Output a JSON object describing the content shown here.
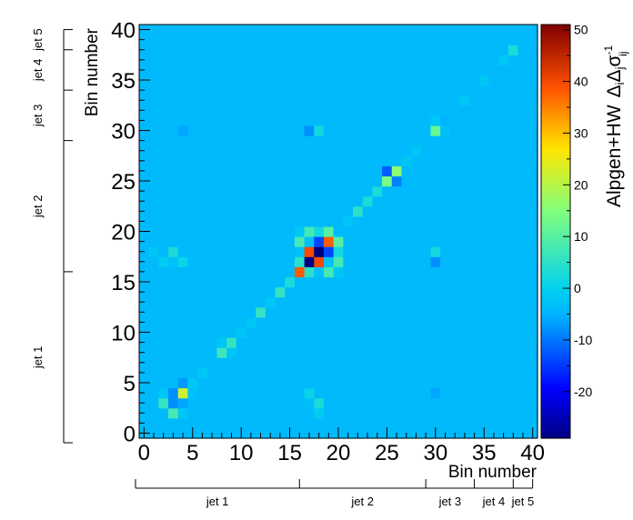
{
  "chart_data": {
    "type": "heatmap",
    "xlabel": "Bin number",
    "ylabel": "Bin number",
    "colorbar_label": "Alpgen+HW  Δ_i Δ_j σ_ij^-1",
    "colorbar_label_main": "Alpgen+HW",
    "colorbar_label_delta": "Δ",
    "colorbar_label_i": "i",
    "colorbar_label_j": "j",
    "colorbar_label_sigma": "σ",
    "colorbar_label_sub": "ij",
    "colorbar_label_sup": "-1",
    "xlim": [
      0,
      41
    ],
    "ylim": [
      0,
      41
    ],
    "zlim": [
      -29,
      51
    ],
    "x_ticks": [
      "0",
      "5",
      "10",
      "15",
      "20",
      "25",
      "30",
      "35",
      "40"
    ],
    "y_ticks": [
      "0",
      "5",
      "10",
      "15",
      "20",
      "25",
      "30",
      "35",
      "40"
    ],
    "colorbar_ticks": [
      "-20",
      "-10",
      "0",
      "10",
      "20",
      "30",
      "40",
      "50"
    ],
    "background_value": -4,
    "cells": [
      {
        "x": 17,
        "y": 17,
        "v": -29
      },
      {
        "x": 18,
        "y": 18,
        "v": -29
      },
      {
        "x": 17,
        "y": 18,
        "v": 40
      },
      {
        "x": 18,
        "y": 17,
        "v": 40
      },
      {
        "x": 16,
        "y": 16,
        "v": 38
      },
      {
        "x": 19,
        "y": 19,
        "v": 38
      },
      {
        "x": 17,
        "y": 16,
        "v": 5
      },
      {
        "x": 16,
        "y": 17,
        "v": 5
      },
      {
        "x": 18,
        "y": 19,
        "v": -14
      },
      {
        "x": 19,
        "y": 18,
        "v": -14
      },
      {
        "x": 17,
        "y": 19,
        "v": -3
      },
      {
        "x": 19,
        "y": 17,
        "v": -3
      },
      {
        "x": 18,
        "y": 16,
        "v": -3
      },
      {
        "x": 16,
        "y": 18,
        "v": -3
      },
      {
        "x": 17,
        "y": 20,
        "v": 8
      },
      {
        "x": 20,
        "y": 17,
        "v": 8
      },
      {
        "x": 16,
        "y": 19,
        "v": 8
      },
      {
        "x": 19,
        "y": 16,
        "v": 8
      },
      {
        "x": 18,
        "y": 20,
        "v": 2
      },
      {
        "x": 20,
        "y": 18,
        "v": 2
      },
      {
        "x": 19,
        "y": 20,
        "v": 10
      },
      {
        "x": 20,
        "y": 19,
        "v": 10
      },
      {
        "x": 16,
        "y": 20,
        "v": -2
      },
      {
        "x": 20,
        "y": 16,
        "v": -2
      },
      {
        "x": 4,
        "y": 4,
        "v": 22
      },
      {
        "x": 3,
        "y": 3,
        "v": -8
      },
      {
        "x": 3,
        "y": 4,
        "v": -8
      },
      {
        "x": 4,
        "y": 3,
        "v": -6
      },
      {
        "x": 3,
        "y": 2,
        "v": 8
      },
      {
        "x": 2,
        "y": 3,
        "v": 6
      },
      {
        "x": 4,
        "y": 5,
        "v": -7
      },
      {
        "x": 5,
        "y": 4,
        "v": -3
      },
      {
        "x": 4,
        "y": 2,
        "v": -2
      },
      {
        "x": 2,
        "y": 4,
        "v": -2
      },
      {
        "x": 26,
        "y": 26,
        "v": 16
      },
      {
        "x": 25,
        "y": 25,
        "v": 14
      },
      {
        "x": 25,
        "y": 26,
        "v": -12
      },
      {
        "x": 26,
        "y": 25,
        "v": -9
      },
      {
        "x": 24,
        "y": 24,
        "v": 3
      },
      {
        "x": 27,
        "y": 27,
        "v": -2
      },
      {
        "x": 30,
        "y": 30,
        "v": 12
      },
      {
        "x": 31,
        "y": 31,
        "v": -5
      },
      {
        "x": 30,
        "y": 31,
        "v": -2
      },
      {
        "x": 31,
        "y": 30,
        "v": -3
      },
      {
        "x": 8,
        "y": 8,
        "v": 7
      },
      {
        "x": 9,
        "y": 9,
        "v": 6
      },
      {
        "x": 8,
        "y": 9,
        "v": -2
      },
      {
        "x": 9,
        "y": 8,
        "v": -2
      },
      {
        "x": 12,
        "y": 12,
        "v": 6
      },
      {
        "x": 14,
        "y": 14,
        "v": 6
      },
      {
        "x": 15,
        "y": 15,
        "v": 3
      },
      {
        "x": 13,
        "y": 13,
        "v": -2
      },
      {
        "x": 22,
        "y": 22,
        "v": 5
      },
      {
        "x": 23,
        "y": 23,
        "v": 3
      },
      {
        "x": 21,
        "y": 21,
        "v": -2
      },
      {
        "x": 17,
        "y": 30,
        "v": -8
      },
      {
        "x": 30,
        "y": 17,
        "v": -8
      },
      {
        "x": 17,
        "y": 3,
        "v": -3
      },
      {
        "x": 3,
        "y": 17,
        "v": -3
      },
      {
        "x": 18,
        "y": 3,
        "v": 3
      },
      {
        "x": 3,
        "y": 18,
        "v": 3
      },
      {
        "x": 18,
        "y": 30,
        "v": 2
      },
      {
        "x": 30,
        "y": 18,
        "v": 2
      },
      {
        "x": 4,
        "y": 30,
        "v": -6
      },
      {
        "x": 30,
        "y": 4,
        "v": -6
      },
      {
        "x": 4,
        "y": 17,
        "v": 1
      },
      {
        "x": 17,
        "y": 4,
        "v": 1
      },
      {
        "x": 1,
        "y": 18,
        "v": -2
      },
      {
        "x": 2,
        "y": 17,
        "v": -1
      },
      {
        "x": 18,
        "y": 2,
        "v": -1
      },
      {
        "x": 38,
        "y": 38,
        "v": 3
      },
      {
        "x": 37,
        "y": 37,
        "v": -2
      },
      {
        "x": 35,
        "y": 35,
        "v": -2
      },
      {
        "x": 33,
        "y": 33,
        "v": -2
      },
      {
        "x": 28,
        "y": 28,
        "v": -2
      },
      {
        "x": 6,
        "y": 6,
        "v": -2
      },
      {
        "x": 10,
        "y": 10,
        "v": -2
      },
      {
        "x": 5,
        "y": 5,
        "v": -2
      },
      {
        "x": 11,
        "y": 11,
        "v": -2
      }
    ],
    "regions": [
      {
        "label": "jet 1",
        "start": 0,
        "end": 16.5
      },
      {
        "label": "jet 2",
        "start": 16.5,
        "end": 29.5
      },
      {
        "label": "jet 3",
        "start": 29.5,
        "end": 34.5
      },
      {
        "label": "jet 4",
        "start": 34.5,
        "end": 38.5
      },
      {
        "label": "jet 5",
        "start": 38.5,
        "end": 40.5
      }
    ]
  }
}
